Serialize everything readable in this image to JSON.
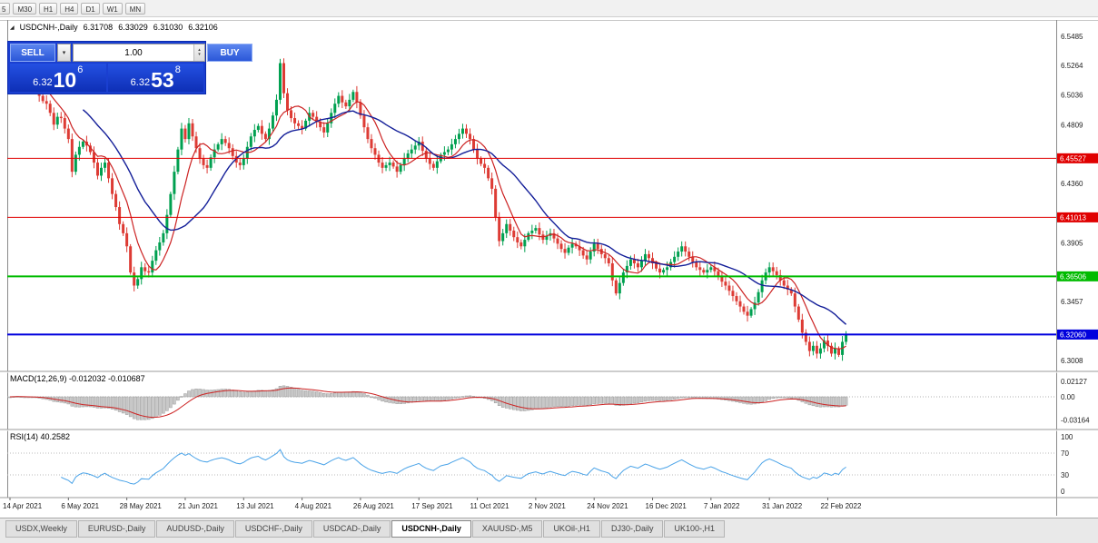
{
  "toolbar": {
    "timeframes": [
      "5",
      "M30",
      "H1",
      "H4",
      "D1",
      "W1",
      "MN"
    ]
  },
  "info_bar": {
    "symbol": "USDCNH-,Daily",
    "open": "6.31708",
    "high": "6.33029",
    "low": "6.31030",
    "close": "6.32106"
  },
  "trade_panel": {
    "sell_label": "SELL",
    "buy_label": "BUY",
    "volume": "1.00",
    "sell_price_small": "6.32",
    "sell_price_big": "10",
    "sell_price_sup": "6",
    "buy_price_small": "6.32",
    "buy_price_big": "53",
    "buy_price_sup": "8"
  },
  "chart_data": {
    "type": "candlestick",
    "symbol": "USDCNH-,Daily",
    "first_open": 6.512,
    "closes": [
      6.516,
      6.521,
      6.52,
      6.513,
      6.51,
      6.515,
      6.513,
      6.507,
      6.503,
      6.499,
      6.497,
      6.49,
      6.481,
      6.487,
      6.486,
      6.478,
      6.47,
      6.445,
      6.458,
      6.464,
      6.468,
      6.465,
      6.46,
      6.452,
      6.442,
      6.448,
      6.452,
      6.44,
      6.428,
      6.418,
      6.405,
      6.398,
      6.388,
      6.368,
      6.358,
      6.363,
      6.372,
      6.369,
      6.368,
      6.377,
      6.385,
      6.391,
      6.398,
      6.412,
      6.428,
      6.445,
      6.462,
      6.478,
      6.47,
      6.482,
      6.472,
      6.463,
      6.455,
      6.45,
      6.448,
      6.456,
      6.462,
      6.466,
      6.47,
      6.467,
      6.463,
      6.457,
      6.452,
      6.45,
      6.455,
      6.464,
      6.472,
      6.477,
      6.48,
      6.474,
      6.47,
      6.478,
      6.488,
      6.5,
      6.528,
      6.505,
      6.492,
      6.486,
      6.482,
      6.48,
      6.478,
      6.484,
      6.49,
      6.487,
      6.483,
      6.479,
      6.475,
      6.482,
      6.49,
      6.497,
      6.503,
      6.498,
      6.495,
      6.5,
      6.506,
      6.498,
      6.488,
      6.479,
      6.47,
      6.463,
      6.458,
      6.452,
      6.448,
      6.45,
      6.452,
      6.449,
      6.445,
      6.45,
      6.455,
      6.459,
      6.462,
      6.465,
      6.468,
      6.461,
      6.455,
      6.451,
      6.448,
      6.453,
      6.458,
      6.46,
      6.462,
      6.466,
      6.47,
      6.474,
      6.478,
      6.474,
      6.47,
      6.462,
      6.455,
      6.451,
      6.448,
      6.44,
      6.432,
      6.41,
      6.392,
      6.398,
      6.405,
      6.4,
      6.395,
      6.391,
      6.388,
      6.393,
      6.398,
      6.4,
      6.402,
      6.397,
      6.393,
      6.396,
      6.398,
      6.394,
      6.39,
      6.386,
      6.383,
      6.387,
      6.39,
      6.388,
      6.385,
      6.381,
      6.378,
      6.384,
      6.39,
      6.386,
      6.382,
      6.379,
      6.375,
      6.362,
      6.352,
      6.36,
      6.368,
      6.373,
      6.378,
      6.375,
      6.372,
      6.377,
      6.382,
      6.379,
      6.375,
      6.371,
      6.368,
      6.37,
      6.372,
      6.376,
      6.38,
      6.384,
      6.388,
      6.384,
      6.38,
      6.376,
      6.372,
      6.37,
      6.368,
      6.37,
      6.372,
      6.369,
      6.365,
      6.361,
      6.358,
      6.354,
      6.35,
      6.346,
      6.342,
      6.338,
      6.335,
      6.34,
      6.345,
      6.353,
      6.362,
      6.368,
      6.372,
      6.369,
      6.366,
      6.362,
      6.358,
      6.355,
      6.352,
      6.342,
      6.332,
      6.322,
      6.315,
      6.308,
      6.312,
      6.306,
      6.31,
      6.316,
      6.312,
      6.306,
      6.31,
      6.305,
      6.315,
      6.321
    ],
    "price_axis_labels": [
      "6.5485",
      "6.5264",
      "6.5036",
      "6.4809",
      "6.4360",
      "6.3905",
      "6.3457",
      "6.3008"
    ],
    "hlines": [
      {
        "price": 6.45527,
        "label": "6.45527",
        "color": "#e00000",
        "width": 1
      },
      {
        "price": 6.41013,
        "label": "6.41013",
        "color": "#e00000",
        "width": 1
      },
      {
        "price": 6.36506,
        "label": "6.36506",
        "color": "#00bb00",
        "width": 2
      },
      {
        "price": 6.3206,
        "label": "6.32060",
        "color": "#0000dd",
        "width": 2
      }
    ],
    "date_labels": [
      {
        "i": 0,
        "t": "14 Apr 2021"
      },
      {
        "i": 16,
        "t": "6 May 2021"
      },
      {
        "i": 32,
        "t": "28 May 2021"
      },
      {
        "i": 48,
        "t": "21 Jun 2021"
      },
      {
        "i": 64,
        "t": "13 Jul 2021"
      },
      {
        "i": 80,
        "t": "4 Aug 2021"
      },
      {
        "i": 96,
        "t": "26 Aug 2021"
      },
      {
        "i": 112,
        "t": "17 Sep 2021"
      },
      {
        "i": 128,
        "t": "11 Oct 2021"
      },
      {
        "i": 144,
        "t": "2 Nov 2021"
      },
      {
        "i": 160,
        "t": "24 Nov 2021"
      },
      {
        "i": 176,
        "t": "16 Dec 2021"
      },
      {
        "i": 192,
        "t": "7 Jan 2022"
      },
      {
        "i": 208,
        "t": "31 Jan 2022"
      },
      {
        "i": 224,
        "t": "22 Feb 2022"
      }
    ],
    "macd": {
      "label": "MACD(12,26,9) -0.012032 -0.010687",
      "axis": [
        {
          "t": "0.02127",
          "v": 0.02127
        },
        {
          "t": "0.00",
          "v": 0
        },
        {
          "t": "-0.03164",
          "v": -0.03164
        }
      ]
    },
    "rsi": {
      "label": "RSI(14) 40.2582",
      "axis": [
        "100",
        "70",
        "30",
        "0"
      ],
      "levels": [
        70,
        30
      ]
    },
    "colors": {
      "up": "#00a050",
      "down": "#dd3b34",
      "ma_fast": "#cc2222",
      "ma_slow": "#141f99",
      "macd_hist": "#c8c8c8",
      "macd_signal": "#cc2222",
      "rsi": "#4aa3e8"
    }
  },
  "bottom_tabs": {
    "items": [
      "USDX,Weekly",
      "EURUSD-,Daily",
      "AUDUSD-,Daily",
      "USDCHF-,Daily",
      "USDCAD-,Daily",
      "USDCNH-,Daily",
      "XAUUSD-,M5",
      "UKOil-,H1",
      "DJ30-,Daily",
      "UK100-,H1"
    ],
    "active_index": 5
  }
}
